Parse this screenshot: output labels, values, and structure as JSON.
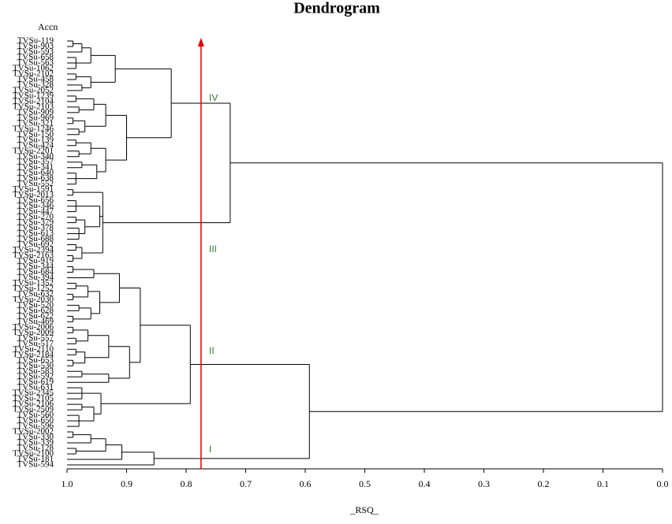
{
  "chart_data": {
    "type": "dendrogram",
    "title": "Dendrogram",
    "y_label": "Accn",
    "x_label": "_RSQ_",
    "xlim": [
      1,
      0
    ],
    "xticks": [
      {
        "value": 1,
        "label": "1.0"
      },
      0.9,
      0.8,
      0.7,
      0.6,
      0.5,
      0.4,
      0.3,
      0.2,
      0.1,
      {
        "value": 0,
        "label": "0.0"
      }
    ],
    "cut": 0.775,
    "cut_color": "#e00000",
    "cluster_labels": [
      "IV",
      "III",
      "II",
      "I"
    ],
    "cluster_label_color": "#2e7d2e",
    "tree": {
      "height": 0,
      "children": [
        {
          "height": 0.726,
          "children": [
            {
              "height": 0.825,
              "children": [
                {
                  "height": 0.919,
                  "children": [
                    {
                      "height": 0.96,
                      "children": [
                        {
                          "height": 0.975,
                          "children": [
                            {
                              "height": 0.99,
                              "children": [
                                "TVSu-119",
                                "TVSu-903"
                              ]
                            },
                            "TVSu-593"
                          ]
                        },
                        {
                          "height": 0.985,
                          "children": [
                            "TVSu-658",
                            "TVSu-563",
                            "TVSu-1062"
                          ]
                        }
                      ]
                    },
                    {
                      "height": 0.96,
                      "children": [
                        {
                          "height": 0.985,
                          "children": [
                            "TVSu-2102",
                            "TVSu-458"
                          ]
                        },
                        {
                          "height": 0.975,
                          "children": [
                            "TVSu-328",
                            "TVSu-2052"
                          ]
                        }
                      ]
                    }
                  ]
                },
                {
                  "height": 0.9,
                  "children": [
                    {
                      "height": 0.935,
                      "children": [
                        {
                          "height": 0.955,
                          "children": [
                            {
                              "height": 0.985,
                              "children": [
                                "TVSu-1239",
                                "TVSu-2104"
                              ]
                            },
                            {
                              "height": 0.98,
                              "children": [
                                "TVSu-2103",
                                "TVSu-909"
                              ]
                            }
                          ]
                        },
                        {
                          "height": 0.97,
                          "children": [
                            {
                              "height": 0.99,
                              "children": [
                                "TVSu-969",
                                "TVSu-321"
                              ]
                            },
                            {
                              "height": 0.98,
                              "children": [
                                "TVSu-1246",
                                "TVSu-150"
                              ]
                            }
                          ]
                        }
                      ]
                    },
                    {
                      "height": 0.935,
                      "children": [
                        {
                          "height": 0.96,
                          "children": [
                            {
                              "height": 0.985,
                              "children": [
                                "TVSu-139",
                                "TVSu-424"
                              ]
                            },
                            {
                              "height": 0.98,
                              "children": [
                                "TVSu-2201",
                                "TVSu-340"
                              ]
                            }
                          ]
                        },
                        {
                          "height": 0.95,
                          "children": [
                            {
                              "height": 0.975,
                              "children": [
                                "TVSu-357",
                                "TVSu-341"
                              ]
                            },
                            {
                              "height": 0.985,
                              "children": [
                                "TVSu-640",
                                "TVSu-638",
                                "TVSu-552"
                              ]
                            }
                          ]
                        }
                      ]
                    }
                  ]
                }
              ]
            },
            {
              "height": 0.94,
              "children": [
                {
                  "height": 0.99,
                  "children": [
                    "TVSu-1591",
                    "TVSu-2013"
                  ]
                },
                {
                  "height": 0.945,
                  "children": [
                    {
                      "height": 0.985,
                      "children": [
                        "TVSu-656",
                        "TVSu-346",
                        "TVSu-447"
                      ]
                    },
                    {
                      "height": 0.97,
                      "children": [
                        {
                          "height": 0.985,
                          "children": [
                            "TVSu-270",
                            "TVSu-379"
                          ]
                        },
                        {
                          "height": 0.98,
                          "children": [
                            "TVSu-378",
                            "TVSu-613",
                            "TVSu-688"
                          ]
                        }
                      ]
                    }
                  ]
                },
                {
                  "height": 0.975,
                  "children": [
                    {
                      "height": 0.985,
                      "children": [
                        "TVSu-692",
                        "TVSu-2394"
                      ]
                    },
                    {
                      "height": 0.99,
                      "children": [
                        "TVSu-2163",
                        "TVSu-919"
                      ]
                    }
                  ]
                }
              ]
            }
          ]
        },
        {
          "height": 0.593,
          "children": [
            {
              "height": 0.793,
              "children": [
                {
                  "height": 0.877,
                  "children": [
                    {
                      "height": 0.912,
                      "children": [
                        {
                          "height": 0.955,
                          "children": [
                            {
                              "height": 0.99,
                              "children": [
                                "TVSu-344",
                                "TVSu-684"
                              ]
                            },
                            "TVSu-394"
                          ]
                        },
                        {
                          "height": 0.945,
                          "children": [
                            {
                              "height": 0.965,
                              "children": [
                                {
                                  "height": 0.985,
                                  "children": [
                                    "TVSu-1352",
                                    "TVSu-1252"
                                  ]
                                },
                                {
                                  "height": 0.99,
                                  "children": [
                                    "TVSu-632",
                                    "TVSu-2030"
                                  ]
                                }
                              ]
                            },
                            {
                              "height": 0.96,
                              "children": [
                                {
                                  "height": 0.98,
                                  "children": [
                                    "TVSu-520",
                                    "TVSu-628"
                                  ]
                                },
                                {
                                  "height": 0.99,
                                  "children": [
                                    "TVSu-622",
                                    "TVSu-469"
                                  ]
                                }
                              ]
                            }
                          ]
                        }
                      ]
                    },
                    {
                      "height": 0.895,
                      "children": [
                        {
                          "height": 0.93,
                          "children": [
                            {
                              "height": 0.965,
                              "children": [
                                {
                                  "height": 0.99,
                                  "children": [
                                    "TVSu-2006",
                                    "TVSu-2009"
                                  ]
                                },
                                {
                                  "height": 0.985,
                                  "children": [
                                    "TVSu-557",
                                    "TVSu-517"
                                  ]
                                }
                              ]
                            },
                            {
                              "height": 0.97,
                              "children": [
                                {
                                  "height": 0.985,
                                  "children": [
                                    "TVSu-2110",
                                    "TVSu-2184"
                                  ]
                                },
                                {
                                  "height": 0.99,
                                  "children": [
                                    "TVSu-653",
                                    "TVSu-530"
                                  ]
                                }
                              ]
                            }
                          ]
                        },
                        {
                          "height": 0.93,
                          "children": [
                            {
                              "height": 0.975,
                              "children": [
                                "TVSu-583",
                                "TVSu-592"
                              ]
                            },
                            "TVSu-619"
                          ]
                        }
                      ]
                    }
                  ]
                },
                {
                  "height": 0.943,
                  "children": [
                    {
                      "height": 0.975,
                      "children": [
                        "TVSu-631",
                        "TVSu-2345",
                        "TVSu-2105"
                      ]
                    },
                    {
                      "height": 0.955,
                      "children": [
                        {
                          "height": 0.975,
                          "children": [
                            "TVSu-2106",
                            "TVSu-2509"
                          ]
                        },
                        {
                          "height": 0.98,
                          "children": [
                            "TVSu-560",
                            "TVSu-650",
                            "TVSu-596"
                          ]
                        }
                      ]
                    }
                  ]
                }
              ]
            },
            {
              "height": 0.854,
              "children": [
                {
                  "height": 0.908,
                  "children": [
                    {
                      "height": 0.935,
                      "children": [
                        {
                          "height": 0.96,
                          "children": [
                            {
                              "height": 0.99,
                              "children": [
                                "TVSu-2002",
                                "TVSu-330"
                              ]
                            },
                            "TVSu-339"
                          ]
                        },
                        {
                          "height": 0.985,
                          "children": [
                            "TVSu-128",
                            "TVSu-2100"
                          ]
                        }
                      ]
                    },
                    "TVSu-181"
                  ]
                },
                "TVSu-594"
              ]
            }
          ]
        }
      ]
    }
  }
}
